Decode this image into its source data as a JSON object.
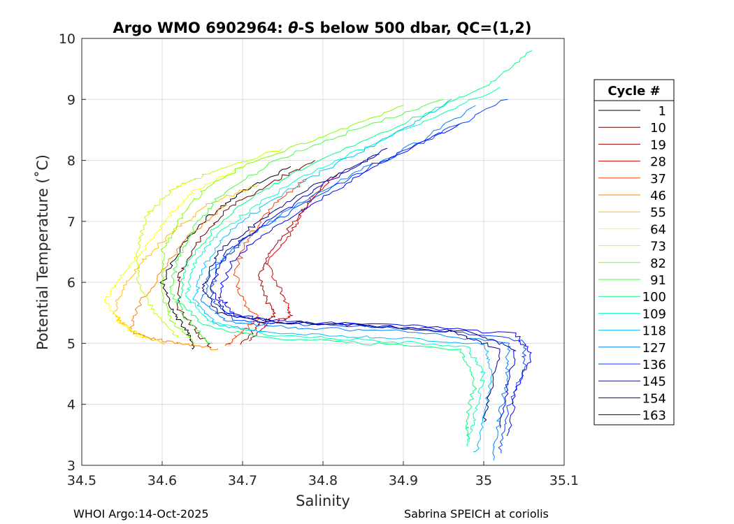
{
  "chart_data": {
    "type": "line",
    "title_prefix": "Argo WMO 6902964: ",
    "title_theta": "θ",
    "title_suffix": "-S below 500 dbar,  QC=(1,2)",
    "xlabel": "Salinity",
    "ylabel": "Potential Temperature (˚C)",
    "xlim": [
      34.5,
      35.1
    ],
    "ylim": [
      3,
      10
    ],
    "xticks": [
      34.5,
      34.6,
      34.7,
      34.8,
      34.9,
      35,
      35.1
    ],
    "xtick_labels": [
      "34.5",
      "34.6",
      "34.7",
      "34.8",
      "34.9",
      "35",
      "35.1"
    ],
    "yticks": [
      3,
      4,
      5,
      6,
      7,
      8,
      9,
      10
    ],
    "ytick_labels": [
      "3",
      "4",
      "5",
      "6",
      "7",
      "8",
      "9",
      "10"
    ],
    "grid": true,
    "legend_title": "Cycle #",
    "legend_position": "right-outside",
    "series": [
      {
        "name": "1",
        "color": "#000000",
        "points": [
          [
            34.64,
            4.9
          ],
          [
            34.63,
            5.2
          ],
          [
            34.61,
            5.6
          ],
          [
            34.6,
            6.0
          ],
          [
            34.62,
            6.5
          ],
          [
            34.66,
            7.1
          ],
          [
            34.7,
            7.5
          ],
          [
            34.76,
            7.9
          ]
        ]
      },
      {
        "name": "10",
        "color": "#600000",
        "points": [
          [
            34.66,
            4.93
          ],
          [
            34.64,
            5.25
          ],
          [
            34.62,
            5.6
          ],
          [
            34.62,
            6.1
          ],
          [
            34.64,
            6.6
          ],
          [
            34.68,
            7.2
          ],
          [
            34.73,
            7.6
          ],
          [
            34.79,
            8.0
          ]
        ]
      },
      {
        "name": "19",
        "color": "#a00000",
        "points": [
          [
            34.7,
            5.0
          ],
          [
            34.72,
            5.3
          ],
          [
            34.74,
            5.45
          ],
          [
            34.73,
            5.7
          ],
          [
            34.72,
            6.1
          ],
          [
            34.74,
            6.6
          ],
          [
            34.77,
            7.1
          ],
          [
            34.8,
            7.6
          ]
        ]
      },
      {
        "name": "28",
        "color": "#dd0000",
        "points": [
          [
            34.71,
            5.05
          ],
          [
            34.73,
            5.3
          ],
          [
            34.76,
            5.45
          ],
          [
            34.75,
            5.8
          ],
          [
            34.73,
            6.3
          ],
          [
            34.76,
            6.8
          ],
          [
            34.78,
            7.3
          ],
          [
            34.82,
            7.8
          ]
        ]
      },
      {
        "name": "37",
        "color": "#ff4000",
        "points": [
          [
            34.68,
            4.95
          ],
          [
            34.7,
            5.2
          ],
          [
            34.72,
            5.4
          ],
          [
            34.7,
            5.7
          ],
          [
            34.69,
            6.2
          ],
          [
            34.71,
            6.8
          ],
          [
            34.74,
            7.3
          ],
          [
            34.78,
            7.7
          ]
        ]
      },
      {
        "name": "46",
        "color": "#ff8000",
        "points": [
          [
            34.67,
            4.9
          ],
          [
            34.62,
            5.0
          ],
          [
            34.58,
            5.1
          ],
          [
            34.56,
            5.2
          ],
          [
            34.57,
            5.6
          ],
          [
            34.6,
            6.2
          ],
          [
            34.63,
            6.7
          ],
          [
            34.68,
            7.3
          ]
        ]
      },
      {
        "name": "55",
        "color": "#ffbf00",
        "points": [
          [
            34.6,
            5.0
          ],
          [
            34.56,
            5.2
          ],
          [
            34.54,
            5.5
          ],
          [
            34.55,
            5.9
          ],
          [
            34.58,
            6.4
          ],
          [
            34.62,
            6.9
          ],
          [
            34.66,
            7.3
          ],
          [
            34.72,
            7.6
          ]
        ]
      },
      {
        "name": "64",
        "color": "#ffff00",
        "points": [
          [
            34.58,
            5.05
          ],
          [
            34.55,
            5.3
          ],
          [
            34.53,
            5.7
          ],
          [
            34.55,
            6.1
          ],
          [
            34.58,
            6.6
          ],
          [
            34.61,
            7.1
          ],
          [
            34.64,
            7.5
          ],
          [
            34.7,
            7.9
          ]
        ]
      },
      {
        "name": "73",
        "color": "#bfff00",
        "points": [
          [
            34.62,
            5.1
          ],
          [
            34.59,
            5.5
          ],
          [
            34.57,
            6.0
          ],
          [
            34.57,
            6.6
          ],
          [
            34.58,
            7.1
          ],
          [
            34.61,
            7.5
          ],
          [
            34.66,
            7.8
          ],
          [
            34.75,
            8.2
          ]
        ]
      },
      {
        "name": "82",
        "color": "#80ff00",
        "points": [
          [
            34.64,
            5.0
          ],
          [
            34.61,
            5.4
          ],
          [
            34.6,
            5.9
          ],
          [
            34.6,
            6.5
          ],
          [
            34.62,
            7.0
          ],
          [
            34.65,
            7.5
          ],
          [
            34.7,
            7.9
          ],
          [
            34.8,
            8.4
          ],
          [
            34.9,
            8.9
          ]
        ]
      },
      {
        "name": "91",
        "color": "#40ff40",
        "points": [
          [
            34.66,
            5.0
          ],
          [
            34.63,
            5.4
          ],
          [
            34.61,
            5.9
          ],
          [
            34.62,
            6.4
          ],
          [
            34.64,
            6.9
          ],
          [
            34.67,
            7.4
          ],
          [
            34.74,
            8.0
          ],
          [
            34.84,
            8.5
          ],
          [
            34.95,
            9.0
          ]
        ]
      },
      {
        "name": "100",
        "color": "#00ff80",
        "points": [
          [
            34.98,
            3.3
          ],
          [
            34.98,
            3.8
          ],
          [
            34.99,
            4.4
          ],
          [
            34.97,
            4.9
          ],
          [
            34.85,
            5.0
          ],
          [
            34.72,
            5.1
          ],
          [
            34.65,
            5.3
          ],
          [
            34.62,
            5.7
          ],
          [
            34.63,
            6.3
          ],
          [
            34.66,
            6.8
          ],
          [
            34.7,
            7.3
          ],
          [
            34.78,
            7.9
          ],
          [
            34.9,
            8.6
          ],
          [
            35.0,
            9.2
          ],
          [
            35.06,
            9.8
          ]
        ]
      },
      {
        "name": "109",
        "color": "#00ffbf",
        "points": [
          [
            34.98,
            3.4
          ],
          [
            34.99,
            3.9
          ],
          [
            35.0,
            4.5
          ],
          [
            34.98,
            4.95
          ],
          [
            34.86,
            5.05
          ],
          [
            34.73,
            5.15
          ],
          [
            34.66,
            5.35
          ],
          [
            34.63,
            5.75
          ],
          [
            34.64,
            6.3
          ],
          [
            34.67,
            6.8
          ],
          [
            34.72,
            7.3
          ],
          [
            34.8,
            7.9
          ],
          [
            34.92,
            8.6
          ],
          [
            35.02,
            9.2
          ]
        ]
      },
      {
        "name": "118",
        "color": "#00bfff",
        "points": [
          [
            34.99,
            3.2
          ],
          [
            35.0,
            3.8
          ],
          [
            35.01,
            4.5
          ],
          [
            35.0,
            5.0
          ],
          [
            34.88,
            5.1
          ],
          [
            34.75,
            5.15
          ],
          [
            34.67,
            5.3
          ],
          [
            34.64,
            5.7
          ],
          [
            34.65,
            6.2
          ],
          [
            34.68,
            6.8
          ],
          [
            34.73,
            7.3
          ],
          [
            34.81,
            7.9
          ],
          [
            34.9,
            8.5
          ],
          [
            34.96,
            9.0
          ]
        ]
      },
      {
        "name": "127",
        "color": "#0080ff",
        "points": [
          [
            35.01,
            3.1
          ],
          [
            35.02,
            3.8
          ],
          [
            35.03,
            4.5
          ],
          [
            35.03,
            5.0
          ],
          [
            34.9,
            5.2
          ],
          [
            34.77,
            5.25
          ],
          [
            34.68,
            5.35
          ],
          [
            34.65,
            5.7
          ],
          [
            34.66,
            6.2
          ],
          [
            34.7,
            6.7
          ],
          [
            34.76,
            7.2
          ],
          [
            34.84,
            7.8
          ],
          [
            34.92,
            8.3
          ],
          [
            34.99,
            8.9
          ]
        ]
      },
      {
        "name": "136",
        "color": "#0040ff",
        "points": [
          [
            35.02,
            3.2
          ],
          [
            35.03,
            3.9
          ],
          [
            35.05,
            4.6
          ],
          [
            35.05,
            5.05
          ],
          [
            34.92,
            5.25
          ],
          [
            34.78,
            5.3
          ],
          [
            34.69,
            5.4
          ],
          [
            34.66,
            5.75
          ],
          [
            34.67,
            6.3
          ],
          [
            34.71,
            6.8
          ],
          [
            34.78,
            7.3
          ],
          [
            34.86,
            7.9
          ],
          [
            34.94,
            8.4
          ],
          [
            35.03,
            9.0
          ]
        ]
      },
      {
        "name": "145",
        "color": "#0000ff",
        "points": [
          [
            35.03,
            3.5
          ],
          [
            35.04,
            4.2
          ],
          [
            35.06,
            4.8
          ],
          [
            35.04,
            5.15
          ],
          [
            34.9,
            5.3
          ],
          [
            34.76,
            5.35
          ],
          [
            34.69,
            5.45
          ],
          [
            34.67,
            5.8
          ],
          [
            34.69,
            6.4
          ],
          [
            34.74,
            6.9
          ],
          [
            34.8,
            7.4
          ],
          [
            34.88,
            8.0
          ],
          [
            34.97,
            8.6
          ]
        ]
      },
      {
        "name": "154",
        "color": "#0000bf",
        "points": [
          [
            35.02,
            3.6
          ],
          [
            35.03,
            4.3
          ],
          [
            35.04,
            4.9
          ],
          [
            34.98,
            5.2
          ],
          [
            34.85,
            5.3
          ],
          [
            34.74,
            5.35
          ],
          [
            34.68,
            5.5
          ],
          [
            34.66,
            5.9
          ],
          [
            34.68,
            6.5
          ],
          [
            34.73,
            7.0
          ],
          [
            34.8,
            7.6
          ],
          [
            34.88,
            8.2
          ]
        ]
      },
      {
        "name": "163",
        "color": "#000080",
        "points": [
          [
            35.0,
            3.7
          ],
          [
            35.01,
            4.3
          ],
          [
            35.02,
            4.9
          ],
          [
            34.96,
            5.2
          ],
          [
            34.84,
            5.3
          ],
          [
            34.73,
            5.35
          ],
          [
            34.67,
            5.5
          ],
          [
            34.65,
            5.9
          ],
          [
            34.67,
            6.5
          ],
          [
            34.72,
            7.0
          ],
          [
            34.79,
            7.6
          ],
          [
            34.87,
            8.1
          ]
        ]
      }
    ]
  },
  "footer": {
    "left": "WHOI Argo:14-Oct-2025",
    "right": "Sabrina SPEICH at coriolis"
  }
}
